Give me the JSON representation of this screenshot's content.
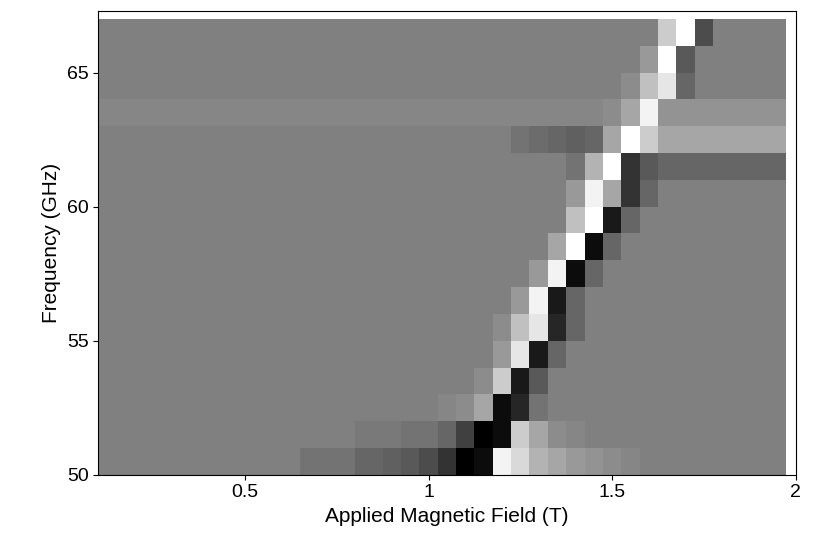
{
  "chart_data": {
    "type": "heatmap",
    "xlabel": "Applied Magnetic Field (T)",
    "ylabel": "Frequency (GHz)",
    "x": [
      0.15,
      0.35,
      0.55,
      0.75,
      0.85,
      0.9,
      0.95,
      1.0,
      1.05,
      1.1,
      1.15,
      1.2,
      1.25,
      1.3,
      1.35,
      1.4,
      1.45,
      1.5,
      1.55,
      1.6,
      1.65,
      1.7,
      1.75,
      1.8,
      1.85,
      1.9,
      1.95
    ],
    "y": [
      50.5,
      51.5,
      52.5,
      53.5,
      54.5,
      55.5,
      56.5,
      57.5,
      58.5,
      59.5,
      60.5,
      61.5,
      62.5,
      63.5,
      64.5,
      65.5,
      66.5
    ],
    "values": [
      [
        0,
        0,
        0,
        -0.1,
        -0.2,
        -0.25,
        -0.3,
        -0.4,
        -0.6,
        -1,
        -0.9,
        0.9,
        0.7,
        0.4,
        0.3,
        0.2,
        0.15,
        0.1,
        0.05,
        0,
        0,
        0,
        0,
        0,
        0,
        0,
        0
      ],
      [
        0,
        0,
        0,
        0,
        -0.05,
        -0.05,
        -0.1,
        -0.1,
        -0.2,
        -0.5,
        -1,
        -0.9,
        0.6,
        0.3,
        0.1,
        0.05,
        0,
        0,
        0,
        0,
        0,
        0,
        0,
        0,
        0,
        0,
        0
      ],
      [
        0,
        0,
        0,
        0,
        0,
        0,
        0,
        0,
        0.05,
        0.1,
        0.3,
        -0.9,
        -0.7,
        -0.1,
        0,
        0,
        0,
        0,
        0,
        0,
        0,
        0,
        0,
        0,
        0,
        0,
        0
      ],
      [
        0,
        0,
        0,
        0,
        0,
        0,
        0,
        0,
        0,
        0,
        0.1,
        0.6,
        -0.8,
        -0.3,
        0,
        0,
        0,
        0,
        0,
        0,
        0,
        0,
        0,
        0,
        0,
        0,
        0
      ],
      [
        0,
        0,
        0,
        0,
        0,
        0,
        0,
        0,
        0,
        0,
        0,
        0.2,
        0.8,
        -0.8,
        -0.2,
        0,
        0,
        0,
        0,
        0,
        0,
        0,
        0,
        0,
        0,
        0,
        0
      ],
      [
        0,
        0,
        0,
        0,
        0,
        0,
        0,
        0,
        0,
        0,
        0,
        0.1,
        0.5,
        0.8,
        -0.7,
        -0.2,
        0,
        0,
        0,
        0,
        0,
        0,
        0,
        0,
        0,
        0,
        0
      ],
      [
        0,
        0,
        0,
        0,
        0,
        0,
        0,
        0,
        0,
        0,
        0,
        0,
        0.2,
        0.9,
        -0.8,
        -0.2,
        0,
        0,
        0,
        0,
        0,
        0,
        0,
        0,
        0,
        0,
        0
      ],
      [
        0,
        0,
        0,
        0,
        0,
        0,
        0,
        0,
        0,
        0,
        0,
        0,
        0,
        0.2,
        0.9,
        -0.9,
        -0.2,
        0,
        0,
        0,
        0,
        0,
        0,
        0,
        0,
        0,
        0
      ],
      [
        0,
        0,
        0,
        0,
        0,
        0,
        0,
        0,
        0,
        0,
        0,
        0,
        0,
        0,
        0.3,
        1.0,
        -0.9,
        -0.2,
        0,
        0,
        0,
        0,
        0,
        0,
        0,
        0,
        0
      ],
      [
        0,
        0,
        0,
        0,
        0,
        0,
        0,
        0,
        0,
        0,
        0,
        0,
        0,
        0,
        0,
        0.5,
        1.0,
        -0.8,
        -0.2,
        0,
        0,
        0,
        0,
        0,
        0,
        0,
        0
      ],
      [
        0,
        0,
        0,
        0,
        0,
        0,
        0,
        0,
        0,
        0,
        0,
        0,
        0,
        0,
        0,
        0.2,
        0.9,
        0.3,
        -0.6,
        -0.2,
        0,
        0,
        0,
        0,
        0,
        0,
        0
      ],
      [
        0,
        0,
        0,
        0,
        0,
        0,
        0,
        0,
        0,
        0,
        0,
        0,
        0,
        0,
        0,
        -0.1,
        0.4,
        1.0,
        -0.6,
        -0.3,
        -0.2,
        -0.2,
        -0.2,
        -0.2,
        -0.2,
        -0.2,
        -0.2
      ],
      [
        0,
        0,
        0,
        0,
        0,
        0,
        0,
        0,
        0,
        0,
        0,
        0,
        -0.1,
        -0.15,
        -0.2,
        -0.25,
        -0.2,
        0.3,
        1.0,
        0.6,
        0.3,
        0.3,
        0.3,
        0.3,
        0.3,
        0.3,
        0.3
      ],
      [
        0.05,
        0.05,
        0.05,
        0.05,
        0.05,
        0.05,
        0.05,
        0.05,
        0.05,
        0.05,
        0.05,
        0.05,
        0.05,
        0.05,
        0.05,
        0.05,
        0.05,
        0.1,
        0.3,
        0.9,
        0.15,
        0.15,
        0.15,
        0.15,
        0.15,
        0.15,
        0.15
      ],
      [
        0,
        0,
        0,
        0,
        0,
        0,
        0,
        0,
        0,
        0,
        0,
        0,
        0,
        0,
        0,
        0,
        0,
        0,
        0.1,
        0.5,
        0.8,
        -0.2,
        0,
        0,
        0,
        0,
        0
      ],
      [
        0,
        0,
        0,
        0,
        0,
        0,
        0,
        0,
        0,
        0,
        0,
        0,
        0,
        0,
        0,
        0,
        0,
        0,
        0,
        0.2,
        1.0,
        -0.3,
        0,
        0,
        0,
        0,
        0
      ],
      [
        0,
        0,
        0,
        0,
        0,
        0,
        0,
        0,
        0,
        0,
        0,
        0,
        0,
        0,
        0,
        0,
        0,
        0,
        0,
        0,
        0.6,
        1.0,
        -0.4,
        0,
        0,
        0,
        0
      ]
    ],
    "xlim": [
      0.1,
      2
    ],
    "ylim": [
      50,
      67.3
    ],
    "xticks": [
      0.5,
      1,
      1.5,
      2
    ],
    "yticks": [
      50,
      55,
      60,
      65
    ]
  }
}
